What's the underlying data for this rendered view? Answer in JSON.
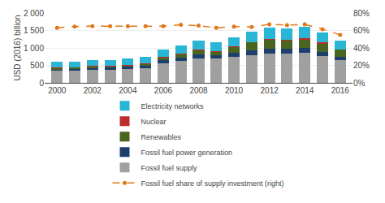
{
  "chart_data": {
    "type": "bar",
    "stacked": true,
    "ylabel": "USD (2016) billion",
    "x": [
      2000,
      2001,
      2002,
      2003,
      2004,
      2005,
      2006,
      2007,
      2008,
      2009,
      2010,
      2011,
      2012,
      2013,
      2014,
      2015,
      2016
    ],
    "series": [
      {
        "name": "Fossil fuel supply",
        "color": "#a0a0a0",
        "values": [
          340,
          345,
          370,
          375,
          395,
          420,
          560,
          620,
          700,
          690,
          740,
          800,
          840,
          845,
          860,
          770,
          645
        ]
      },
      {
        "name": "Fossil fuel power generation",
        "color": "#1c3f6e",
        "values": [
          55,
          55,
          55,
          58,
          62,
          68,
          85,
          95,
          105,
          95,
          115,
          135,
          140,
          135,
          135,
          105,
          90
        ]
      },
      {
        "name": "Renewables",
        "color": "#4a6520",
        "values": [
          40,
          42,
          45,
          48,
          52,
          62,
          90,
          108,
          140,
          120,
          190,
          230,
          255,
          250,
          260,
          260,
          220
        ]
      },
      {
        "name": "Nuclear",
        "color": "#be2c2c",
        "values": [
          8,
          8,
          8,
          8,
          8,
          8,
          8,
          8,
          8,
          8,
          8,
          8,
          18,
          8,
          28,
          18,
          8
        ]
      },
      {
        "name": "Electricity networks",
        "color": "#29b5d5",
        "values": [
          155,
          158,
          165,
          162,
          170,
          185,
          220,
          235,
          250,
          240,
          248,
          295,
          320,
          310,
          320,
          295,
          240
        ]
      },
      {
        "name": "Fossil fuel share of supply investment (right)",
        "type": "line",
        "axis": "y2",
        "color": "#e07818",
        "line_style": "dashed",
        "marker": "circle",
        "values": [
          63,
          64.5,
          65,
          65,
          65,
          65,
          65,
          66.5,
          65.5,
          63,
          64.5,
          64,
          67,
          66,
          67,
          61.5,
          55
        ]
      }
    ],
    "xlim": [
      1999.3,
      2016.7
    ],
    "xticks": [
      2000,
      2002,
      2004,
      2006,
      2008,
      2010,
      2012,
      2014,
      2016
    ],
    "ylim": [
      0,
      2000
    ],
    "yticks": [
      0,
      500,
      {
        "value": 1000,
        "label": "1 000"
      },
      {
        "value": 1500,
        "label": "1 500"
      },
      {
        "value": 2000,
        "label": "2 000"
      }
    ],
    "y2lim": [
      0,
      80
    ],
    "y2ticks": [
      {
        "value": 0,
        "label": "0%"
      },
      {
        "value": 20,
        "label": "20%"
      },
      {
        "value": 40,
        "label": "40%"
      },
      {
        "value": 60,
        "label": "60%"
      },
      {
        "value": 80,
        "label": "80%"
      }
    ],
    "grid": "y",
    "legend": "bottom"
  }
}
